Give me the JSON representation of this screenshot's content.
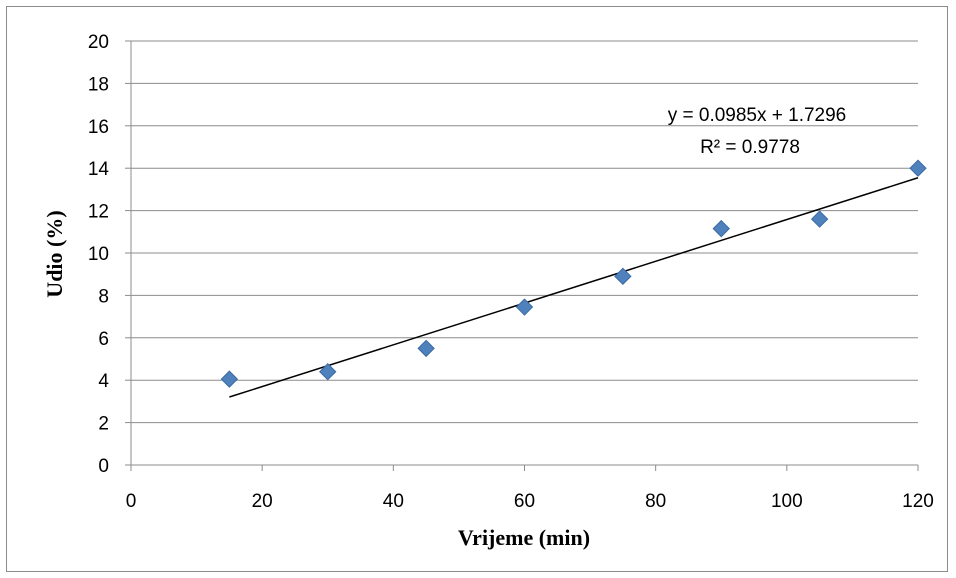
{
  "chart_data": {
    "type": "scatter",
    "xlabel": "Vrijeme (min)",
    "ylabel": "Udio (%)",
    "xlim": [
      0,
      120
    ],
    "ylim": [
      0,
      20
    ],
    "x_ticks": [
      "0",
      "20",
      "40",
      "60",
      "80",
      "100",
      "120"
    ],
    "y_ticks": [
      "0",
      "2",
      "4",
      "6",
      "8",
      "10",
      "12",
      "14",
      "16",
      "18",
      "20"
    ],
    "grid": "horizontal",
    "series": [
      {
        "x": [
          15,
          30,
          45,
          60,
          75,
          90,
          105,
          120
        ],
        "y": [
          4.05,
          4.4,
          5.5,
          7.45,
          8.9,
          11.15,
          11.6,
          14.0
        ],
        "marker": "diamond",
        "color": "#4f81bd"
      }
    ],
    "trendline": {
      "slope": 0.0985,
      "intercept": 1.7296,
      "x_range": [
        15,
        120
      ],
      "color": "#000000",
      "equation_label": "y = 0.0985x + 1.7296",
      "r2_label": "R² = 0.9778"
    }
  }
}
